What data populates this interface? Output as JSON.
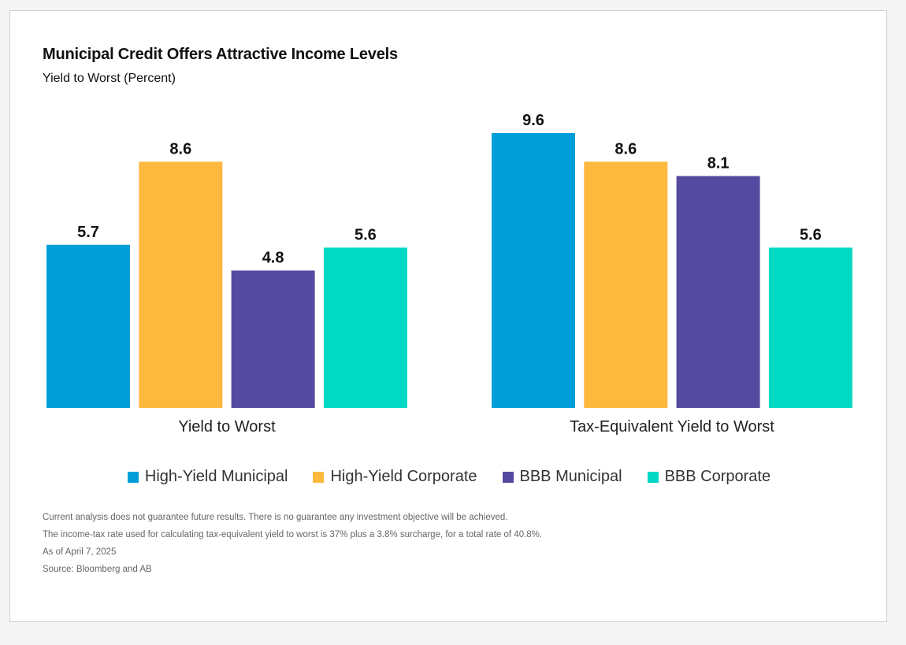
{
  "chart": {
    "title": "Municipal Credit Offers Attractive Income Levels",
    "subtitle": "Yield to Worst (Percent)"
  },
  "chart_data": {
    "type": "bar",
    "title": "Municipal Credit Offers Attractive Income Levels",
    "subtitle": "Yield to Worst (Percent)",
    "categories": [
      "Yield to Worst",
      "Tax-Equivalent Yield to Worst"
    ],
    "series": [
      {
        "name": "High-Yield Municipal",
        "color": "#009ed8",
        "values": [
          5.7,
          9.6
        ]
      },
      {
        "name": "High-Yield Corporate",
        "color": "#fdb83e",
        "values": [
          8.6,
          8.6
        ]
      },
      {
        "name": "BBB Municipal",
        "color": "#544ba0",
        "values": [
          4.8,
          8.1
        ]
      },
      {
        "name": "BBB Corporate",
        "color": "#00d9c3",
        "values": [
          5.6,
          5.6
        ]
      }
    ],
    "ylim": [
      0,
      9.6
    ],
    "grid": false,
    "legend": "bottom",
    "data_labels": true
  },
  "notes": [
    "Current analysis does not guarantee future results. There is no guarantee any investment objective will be achieved.",
    "The income-tax rate used for calculating tax-equivalent yield to worst is 37% plus a 3.8% surcharge, for a total rate of 40.8%.",
    "As of April 7, 2025",
    "Source: Bloomberg and AB"
  ]
}
